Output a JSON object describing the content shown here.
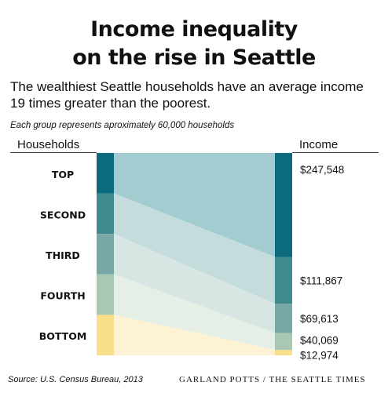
{
  "title_line1": "Income inequality",
  "title_line2": "on the rise in Seattle",
  "subtitle": "The wealthiest Seattle households have an average income 19 times greater than the poorest.",
  "note": "Each group represents aproximately 60,000 households",
  "source": "Source: U.S. Census Bureau, 2013",
  "credit": "GARLAND POTTS / THE SEATTLE TIMES",
  "colors": {
    "top": "#0b6b7d",
    "second": "#3e8a8e",
    "third": "#78a8a6",
    "fourth": "#a9c8b4",
    "bottom": "#f9df8a",
    "band_top": "#a3ccd1",
    "band_second": "#c4dcdb",
    "band_third": "#d8e6e3",
    "band_fourth": "#e6efe6",
    "band_bottom": "#fdf2d3"
  },
  "chart_data": {
    "type": "bar",
    "xlabel": "Households",
    "ylabel": "Income",
    "categories": [
      "TOP",
      "SECOND",
      "THIRD",
      "FOURTH",
      "BOTTOM"
    ],
    "values": [
      247548,
      111867,
      69613,
      40069,
      12974
    ],
    "value_labels": [
      "$247,548",
      "$111,867",
      "$69,613",
      "$40,069",
      "$12,974"
    ]
  }
}
